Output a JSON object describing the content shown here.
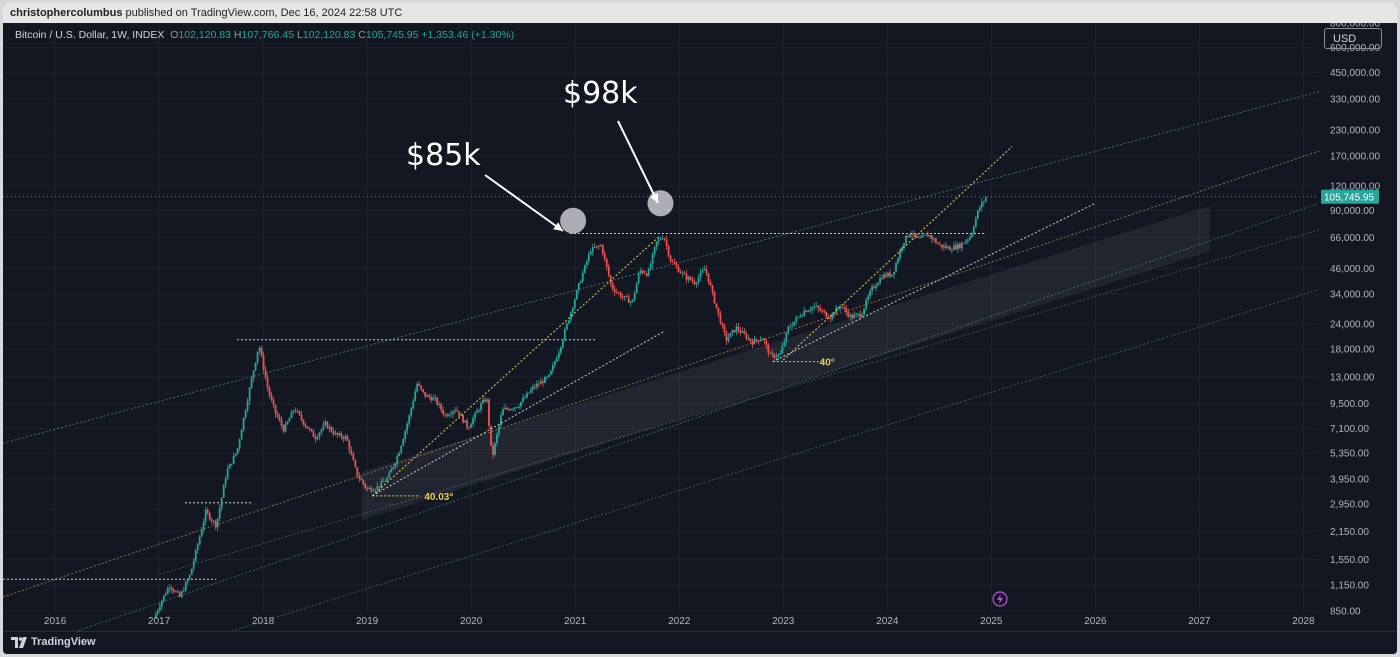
{
  "publish_bar": {
    "author": "christophercolumbus",
    "text": "published on TradingView.com, Dec 16, 2024 22:58 UTC"
  },
  "legend": {
    "symbol": "Bitcoin / U.S. Dollar, 1W, INDEX",
    "o_label": "O",
    "o_value": "102,120.83",
    "h_label": "H",
    "h_value": "107,766.45",
    "l_label": "L",
    "l_value": "102,120.83",
    "c_label": "C",
    "c_value": "105,745.95",
    "change": "+1,353.46 (+1.30%)"
  },
  "currency_button": "USD",
  "footer": {
    "brand": "TradingView"
  },
  "colors": {
    "background": "#131722",
    "up": "#26a69a",
    "down": "#ef5350",
    "grid": "#1e222d",
    "axis_text": "#b2b5be",
    "annotation_yellow": "#e6d24a"
  },
  "chart_data": {
    "type": "candlestick",
    "title": "Bitcoin / U.S. Dollar, 1W, INDEX",
    "y_scale": "log",
    "ylim": [
      850,
      800000
    ],
    "xlim": [
      2015.5,
      2028.15
    ],
    "x_ticks": [
      "2016",
      "2017",
      "2018",
      "2019",
      "2020",
      "2021",
      "2022",
      "2023",
      "2024",
      "2025",
      "2026",
      "2027",
      "2028"
    ],
    "y_ticks": [
      "850.00",
      "1,150.00",
      "1,550.00",
      "2,150.00",
      "2,950.00",
      "3,950.00",
      "5,350.00",
      "7,100.00",
      "9,500.00",
      "13,000.00",
      "18,000.00",
      "24,000.00",
      "34,000.00",
      "46,000.00",
      "66,000.00",
      "90,000.00",
      "120,000.00",
      "170,000.00",
      "230,000.00",
      "330,000.00",
      "450,000.00",
      "600,000.00",
      "800,000.00"
    ],
    "last_price_label": "105,745.95",
    "last_price": 105745.95,
    "price_path": [
      [
        2016.95,
        780
      ],
      [
        2017.0,
        900
      ],
      [
        2017.1,
        1150
      ],
      [
        2017.2,
        1000
      ],
      [
        2017.3,
        1300
      ],
      [
        2017.45,
        2700
      ],
      [
        2017.55,
        2300
      ],
      [
        2017.65,
        4300
      ],
      [
        2017.75,
        5500
      ],
      [
        2017.85,
        10000
      ],
      [
        2017.96,
        19000
      ],
      [
        2018.05,
        11000
      ],
      [
        2018.12,
        8500
      ],
      [
        2018.2,
        7000
      ],
      [
        2018.3,
        9000
      ],
      [
        2018.4,
        7500
      ],
      [
        2018.5,
        6400
      ],
      [
        2018.6,
        7500
      ],
      [
        2018.7,
        6600
      ],
      [
        2018.8,
        6400
      ],
      [
        2018.9,
        4200
      ],
      [
        2019.0,
        3500
      ],
      [
        2019.1,
        3600
      ],
      [
        2019.2,
        4000
      ],
      [
        2019.3,
        5300
      ],
      [
        2019.4,
        8000
      ],
      [
        2019.48,
        12000
      ],
      [
        2019.55,
        10500
      ],
      [
        2019.65,
        10000
      ],
      [
        2019.75,
        8300
      ],
      [
        2019.85,
        9000
      ],
      [
        2019.97,
        7200
      ],
      [
        2020.1,
        9500
      ],
      [
        2020.15,
        10200
      ],
      [
        2020.2,
        5000
      ],
      [
        2020.3,
        8800
      ],
      [
        2020.45,
        9300
      ],
      [
        2020.6,
        11500
      ],
      [
        2020.75,
        13000
      ],
      [
        2020.85,
        18000
      ],
      [
        2020.97,
        29000
      ],
      [
        2021.05,
        40000
      ],
      [
        2021.15,
        57000
      ],
      [
        2021.25,
        60000
      ],
      [
        2021.35,
        37000
      ],
      [
        2021.45,
        33000
      ],
      [
        2021.55,
        31000
      ],
      [
        2021.62,
        45000
      ],
      [
        2021.7,
        43000
      ],
      [
        2021.78,
        62000
      ],
      [
        2021.85,
        67500
      ],
      [
        2021.92,
        50000
      ],
      [
        2022.05,
        42000
      ],
      [
        2022.15,
        39000
      ],
      [
        2022.25,
        46000
      ],
      [
        2022.35,
        30000
      ],
      [
        2022.45,
        20000
      ],
      [
        2022.55,
        23000
      ],
      [
        2022.7,
        19500
      ],
      [
        2022.8,
        20500
      ],
      [
        2022.88,
        16500
      ],
      [
        2022.97,
        16800
      ],
      [
        2023.05,
        23000
      ],
      [
        2023.2,
        28000
      ],
      [
        2023.3,
        29500
      ],
      [
        2023.45,
        26000
      ],
      [
        2023.55,
        30000
      ],
      [
        2023.65,
        26000
      ],
      [
        2023.75,
        27000
      ],
      [
        2023.85,
        36000
      ],
      [
        2023.95,
        42000
      ],
      [
        2024.05,
        43000
      ],
      [
        2024.15,
        62000
      ],
      [
        2024.22,
        70000
      ],
      [
        2024.3,
        64000
      ],
      [
        2024.4,
        68000
      ],
      [
        2024.5,
        60000
      ],
      [
        2024.6,
        58000
      ],
      [
        2024.7,
        60000
      ],
      [
        2024.8,
        67000
      ],
      [
        2024.88,
        92000
      ],
      [
        2024.95,
        105745.95
      ]
    ],
    "annotations": [
      {
        "text": "$85k",
        "target_date": 2021.0,
        "target_price": 80000
      },
      {
        "text": "$98k",
        "target_date": 2021.8,
        "target_price": 98000
      },
      {
        "text": "40.03°",
        "date": 2019.1,
        "price": 3250
      },
      {
        "text": "40°",
        "date": 2023.05,
        "price": 15000
      }
    ],
    "horizontal_levels": [
      {
        "price": 1230,
        "from": 2015.5,
        "to": 2017.55
      },
      {
        "price": 3000,
        "from": 2017.25,
        "to": 2017.9
      },
      {
        "price": 20000,
        "from": 2017.75,
        "to": 2021.2
      },
      {
        "price": 69000,
        "from": 2020.95,
        "to": 2024.95
      }
    ]
  }
}
